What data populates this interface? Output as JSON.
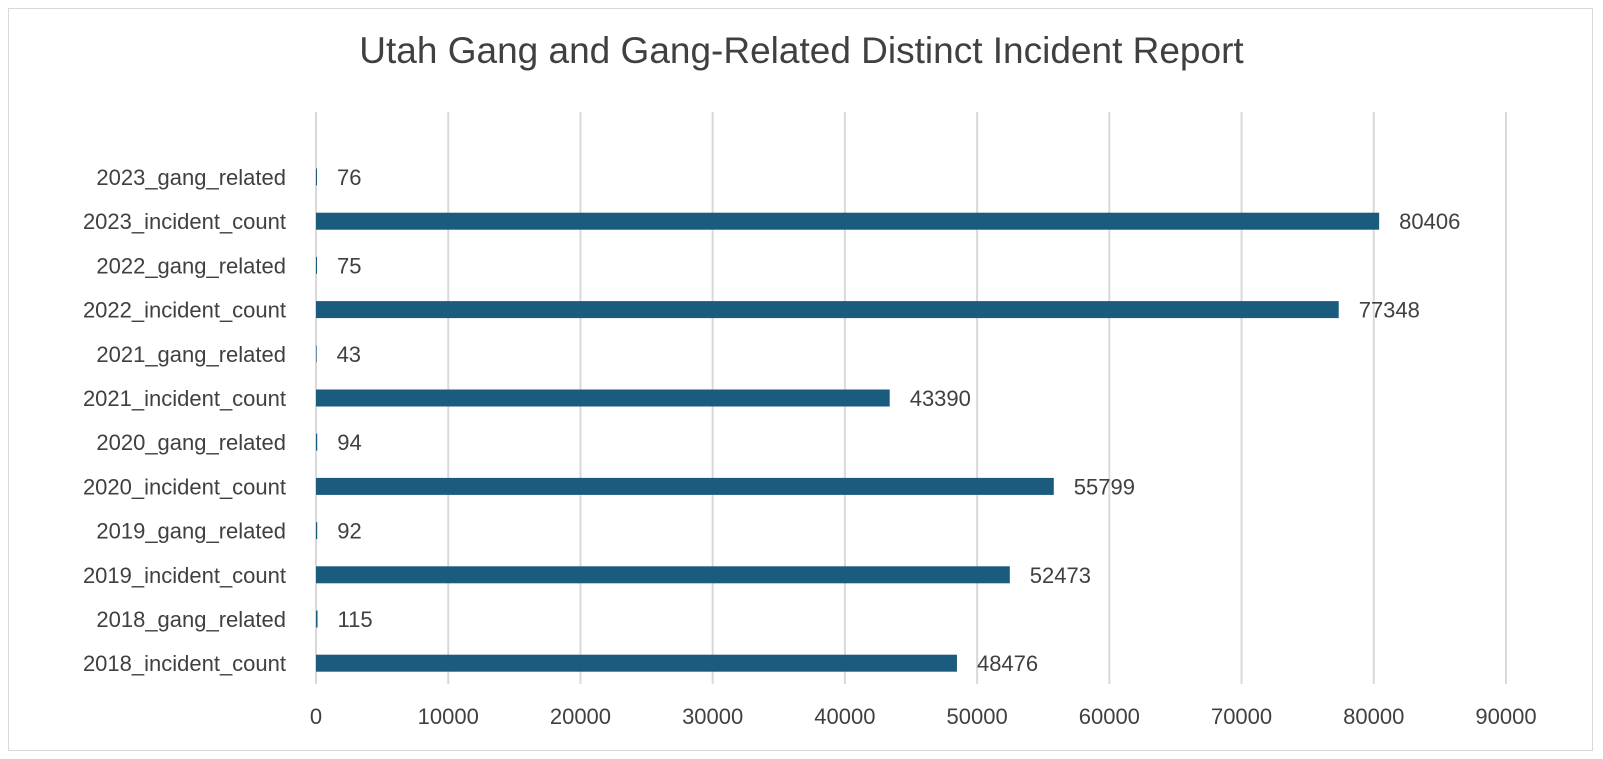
{
  "chart_data": {
    "type": "bar",
    "orientation": "horizontal",
    "title": "Utah Gang and Gang-Related Distinct Incident Report",
    "categories": [
      "2023_gang_related",
      "2023_incident_count",
      "2022_gang_related",
      "2022_incident_count",
      "2021_gang_related",
      "2021_incident_count",
      "2020_gang_related",
      "2020_incident_count",
      "2019_gang_related",
      "2019_incident_count",
      "2018_gang_related",
      "2018_incident_count"
    ],
    "values": [
      76,
      80406,
      75,
      77348,
      43,
      43390,
      94,
      55799,
      92,
      52473,
      115,
      48476
    ],
    "data_labels": [
      "76",
      "80406",
      "75",
      "77348",
      "43",
      "43390",
      "94",
      "55799",
      "92",
      "52473",
      "115",
      "48476"
    ],
    "xlim": [
      0,
      90000
    ],
    "xticks": [
      0,
      10000,
      20000,
      30000,
      40000,
      50000,
      60000,
      70000,
      80000,
      90000
    ],
    "xtick_labels": [
      "0",
      "10000",
      "20000",
      "30000",
      "40000",
      "50000",
      "60000",
      "70000",
      "80000",
      "90000"
    ],
    "grid": "vertical",
    "legend": "none",
    "bar_color": "#1b5b7e",
    "grid_color": "#d9d9d9",
    "text_color": "#404040"
  }
}
